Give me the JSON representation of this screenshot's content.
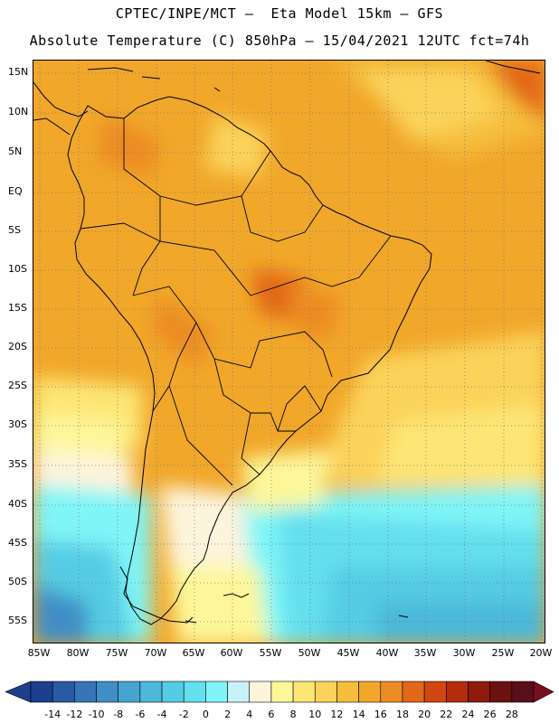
{
  "header": {
    "title_line1": "CPTEC/INPE/MCT –  Eta Model 15km – GFS",
    "title_line2": "Absolute Temperature (C) 850hPa – 15/04/2021 12UTC fct=74h"
  },
  "map": {
    "latitude_labels": [
      "15N",
      "10N",
      "5N",
      "EQ",
      "5S",
      "10S",
      "15S",
      "20S",
      "25S",
      "30S",
      "35S",
      "40S",
      "45S",
      "50S",
      "55S"
    ],
    "longitude_labels": [
      "85W",
      "80W",
      "75W",
      "70W",
      "65W",
      "60W",
      "55W",
      "50W",
      "45W",
      "40W",
      "35W",
      "30W",
      "25W",
      "20W"
    ],
    "gridlines": "dotted",
    "variable": "temperature at 850 hPa (°C)"
  },
  "colorbar": {
    "tick_labels": [
      "-14",
      "-12",
      "-10",
      "-8",
      "-6",
      "-4",
      "-2",
      "0",
      "2",
      "4",
      "6",
      "8",
      "10",
      "12",
      "14",
      "16",
      "18",
      "20",
      "22",
      "24",
      "26",
      "28"
    ],
    "colors": [
      "#1d3f8f",
      "#2a59a6",
      "#3575b8",
      "#3f8ec6",
      "#47a4d0",
      "#4cb8da",
      "#54cce4",
      "#64dfee",
      "#7ff5f8",
      "#c8f2fa",
      "#fdf4dc",
      "#fdf79a",
      "#fde674",
      "#fbd35a",
      "#f5bd3b",
      "#f1a72a",
      "#ec8c24",
      "#e36718",
      "#cf4812",
      "#b32c0e",
      "#8f1b0c",
      "#6d1010",
      "#5a0e1a"
    ]
  }
}
